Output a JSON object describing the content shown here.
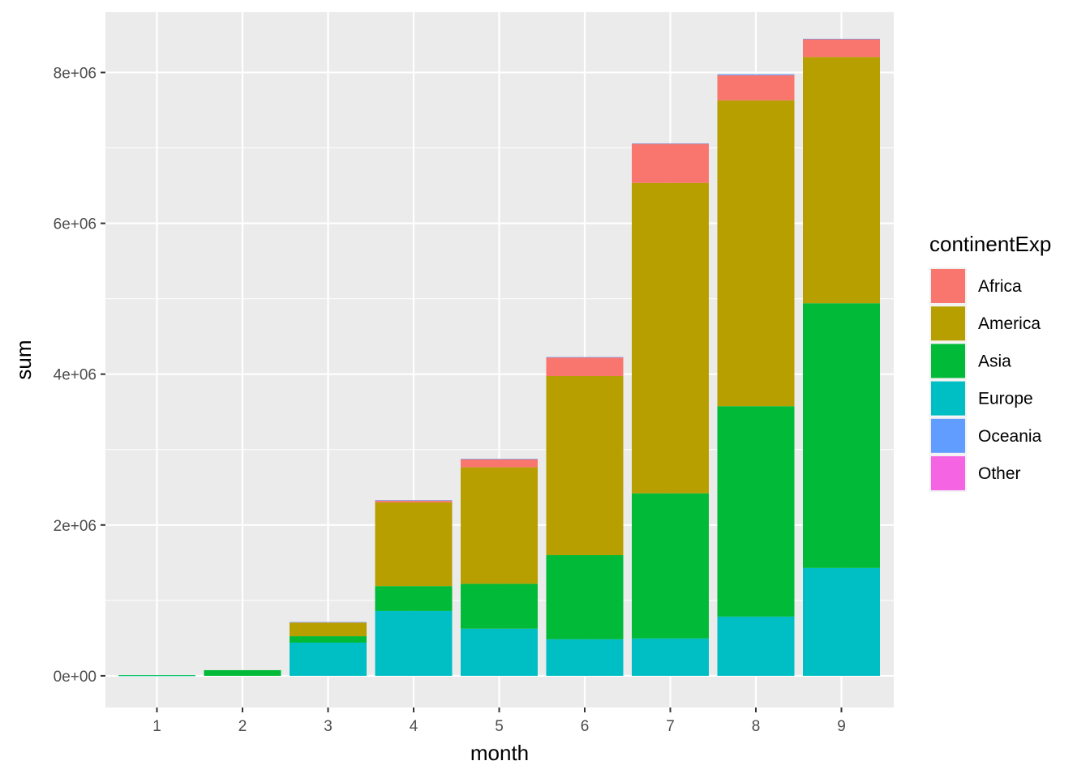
{
  "chart_data": {
    "type": "bar",
    "stacked": true,
    "title": "",
    "xlabel": "month",
    "ylabel": "sum",
    "categories": [
      "1",
      "2",
      "3",
      "4",
      "5",
      "6",
      "7",
      "8",
      "9"
    ],
    "ylim": [
      -420000,
      8800000
    ],
    "yticks": [
      {
        "value": 0,
        "label": "0e+00"
      },
      {
        "value": 2000000,
        "label": "2e+06"
      },
      {
        "value": 4000000,
        "label": "4e+06"
      },
      {
        "value": 6000000,
        "label": "6e+06"
      },
      {
        "value": 8000000,
        "label": "8e+06"
      }
    ],
    "grid": true,
    "legend": {
      "title": "continentExp",
      "placement": "right"
    },
    "series": [
      {
        "name": "Europe",
        "color": "#00BFC4",
        "values": [
          2000,
          0,
          440000,
          860000,
          625000,
          485000,
          495000,
          785000,
          1430000
        ]
      },
      {
        "name": "Asia",
        "color": "#00BA38",
        "values": [
          8000,
          75000,
          85000,
          330000,
          595000,
          1115000,
          1925000,
          2790000,
          3510000
        ]
      },
      {
        "name": "America",
        "color": "#B79F00",
        "values": [
          0,
          0,
          180000,
          1110000,
          1545000,
          2375000,
          4115000,
          4055000,
          3265000
        ]
      },
      {
        "name": "Africa",
        "color": "#F8766D",
        "values": [
          0,
          0,
          8000,
          25000,
          110000,
          250000,
          520000,
          335000,
          240000
        ]
      },
      {
        "name": "Oceania",
        "color": "#619CFF",
        "values": [
          0,
          0,
          1000,
          4000,
          1000,
          1000,
          5000,
          12000,
          2000
        ]
      },
      {
        "name": "Other",
        "color": "#F564E3",
        "values": [
          0,
          0,
          0,
          0,
          0,
          0,
          0,
          0,
          0
        ]
      }
    ],
    "legend_order": [
      "Africa",
      "America",
      "Asia",
      "Europe",
      "Oceania",
      "Other"
    ]
  }
}
